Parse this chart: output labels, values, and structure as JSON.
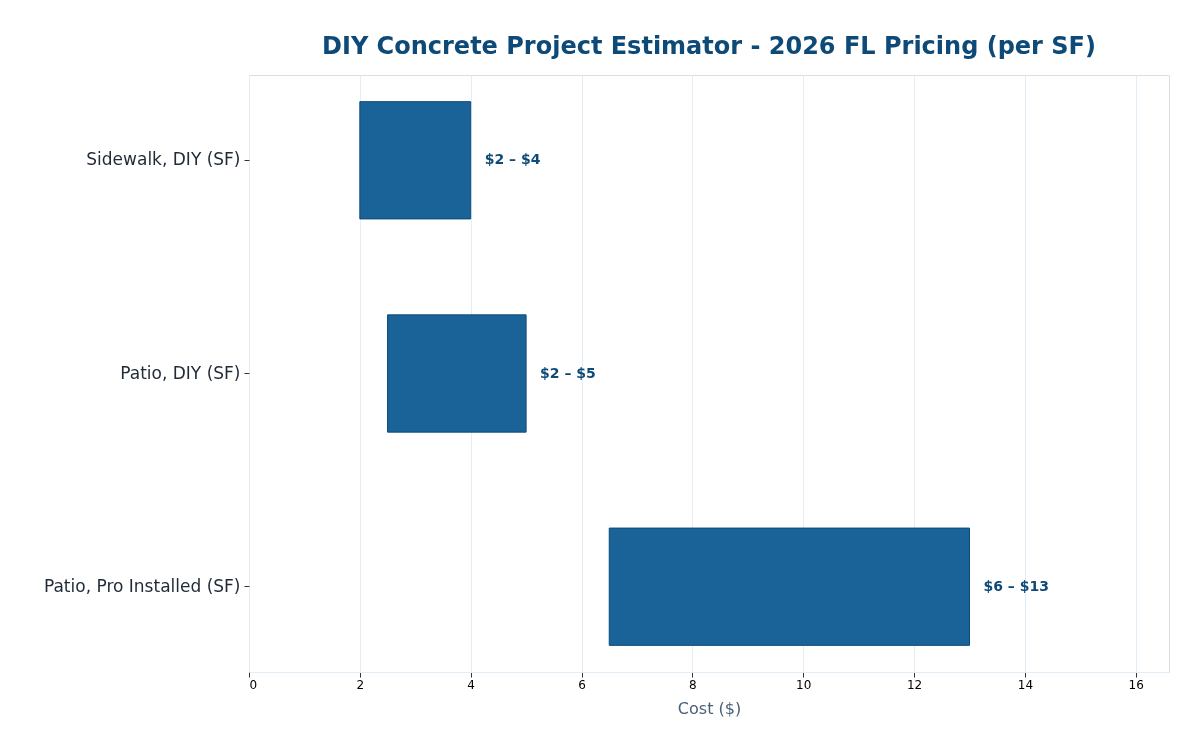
{
  "chart_data": {
    "type": "bar",
    "orientation": "horizontal",
    "title": "DIY Concrete Project Estimator - 2026 FL Pricing (per SF)",
    "xlabel": "Cost ($)",
    "categories": [
      "Sidewalk, DIY (SF)",
      "Patio, DIY (SF)",
      "Patio, Pro Installed (SF)"
    ],
    "base": [
      2,
      2.5,
      6.5
    ],
    "values": [
      2,
      2.5,
      6.5
    ],
    "value_labels": [
      "$2 – $4",
      "$2 – $5",
      "$6 – $13"
    ],
    "color": "#1a6399",
    "xlim": [
      0,
      16.6
    ],
    "xticks": [
      0,
      2,
      4,
      6,
      8,
      10,
      12,
      14,
      16
    ],
    "grid": "x"
  }
}
